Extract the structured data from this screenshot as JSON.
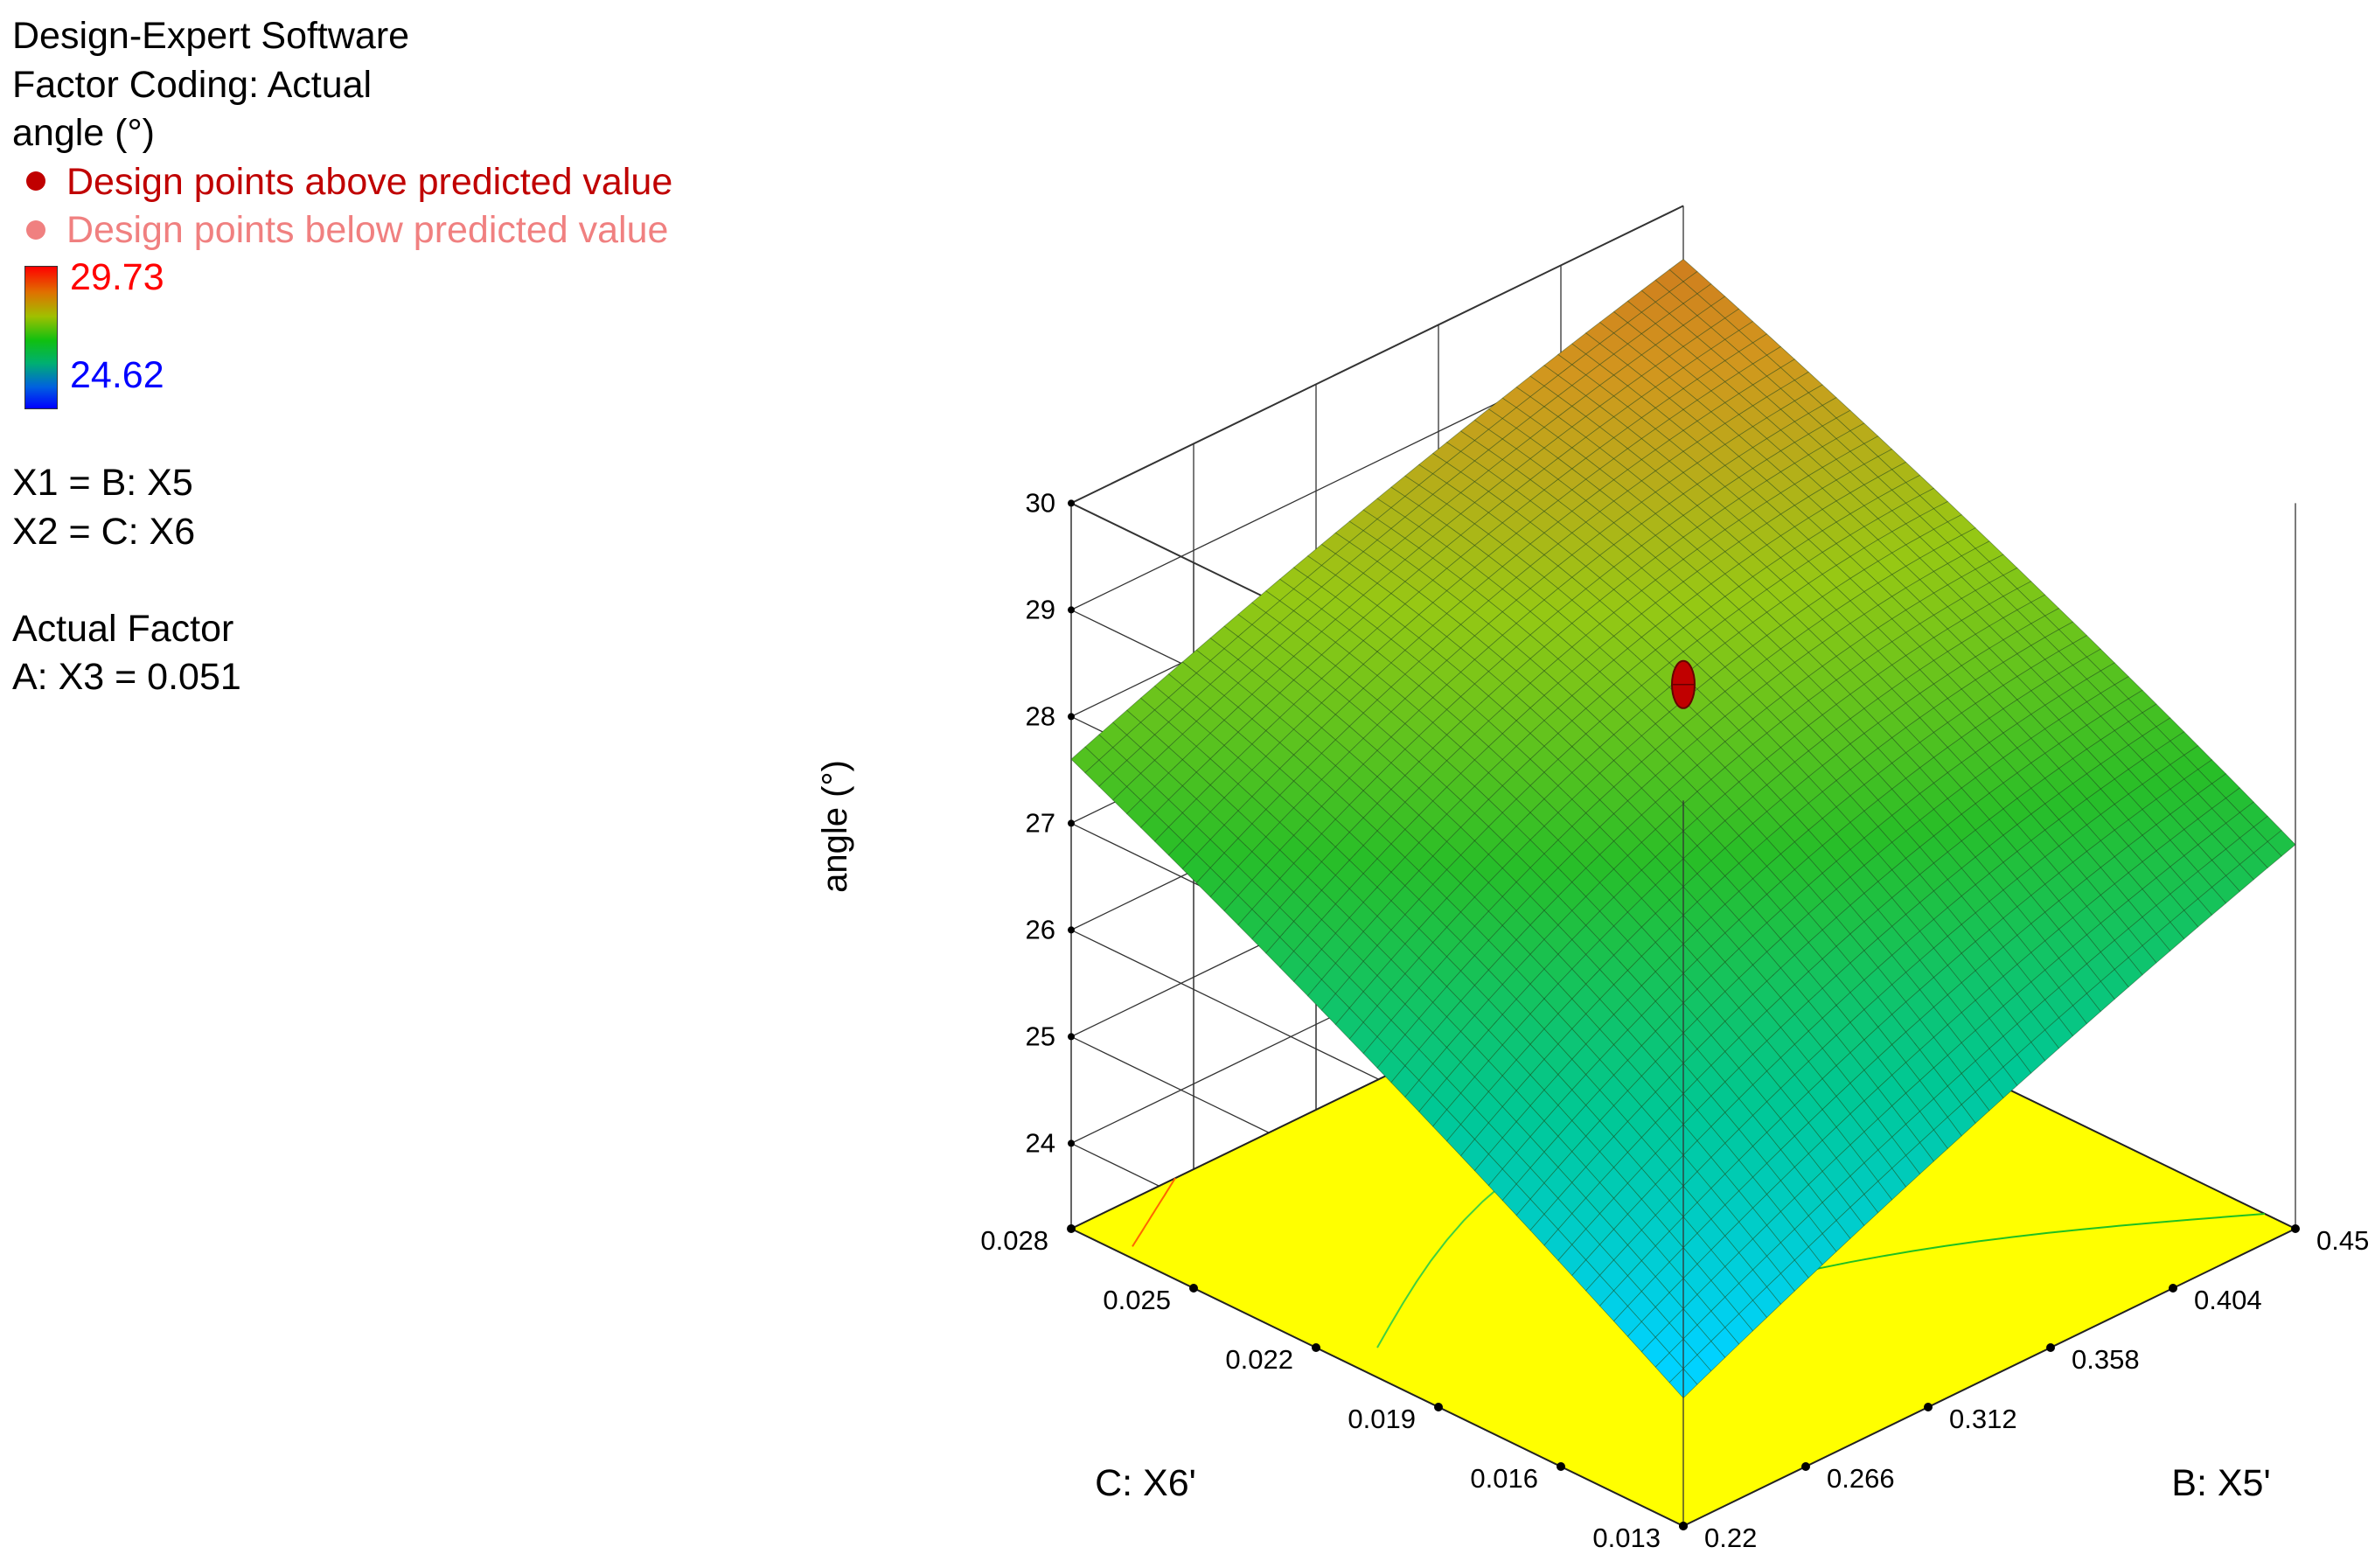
{
  "legend": {
    "software": "Design-Expert Software",
    "coding": "Factor Coding: Actual",
    "response": "angle (°)",
    "above_label": "Design points above predicted value",
    "below_label": "Design points below predicted value",
    "above_color": "#c00000",
    "below_color": "#f08080",
    "color_high": "29.73",
    "color_low": "24.62",
    "x1": "X1 = B: X5",
    "x2": "X2 = C: X6",
    "actual_factor_title": "Actual Factor",
    "actual_factor": "A: X3 = 0.051"
  },
  "chart_data": {
    "type": "surface3d",
    "z_axis": {
      "label": "angle (°)",
      "ticks": [
        "24",
        "25",
        "26",
        "27",
        "28",
        "29",
        "30"
      ],
      "range": [
        23.2,
        30
      ]
    },
    "b_axis": {
      "label": "B: X5'",
      "ticks": [
        "0.22",
        "0.266",
        "0.312",
        "0.358",
        "0.404",
        "0.45"
      ],
      "range": [
        0.22,
        0.45
      ]
    },
    "c_axis": {
      "label": "C: X6'",
      "ticks": [
        "0.013",
        "0.016",
        "0.019",
        "0.022",
        "0.025",
        "0.028"
      ],
      "range": [
        0.013,
        0.028
      ]
    },
    "surface_corners": [
      {
        "b": 0.22,
        "c": 0.013,
        "angle": 24.6
      },
      {
        "b": 0.22,
        "c": 0.028,
        "angle": 27.8
      },
      {
        "b": 0.45,
        "c": 0.013,
        "angle": 27.0
      },
      {
        "b": 0.45,
        "c": 0.028,
        "angle": 29.7
      }
    ],
    "design_points": [
      {
        "b": 0.335,
        "c": 0.0205,
        "angle": 28.3,
        "position": "above"
      }
    ],
    "floor_color": "#ffff00",
    "grid": true
  }
}
